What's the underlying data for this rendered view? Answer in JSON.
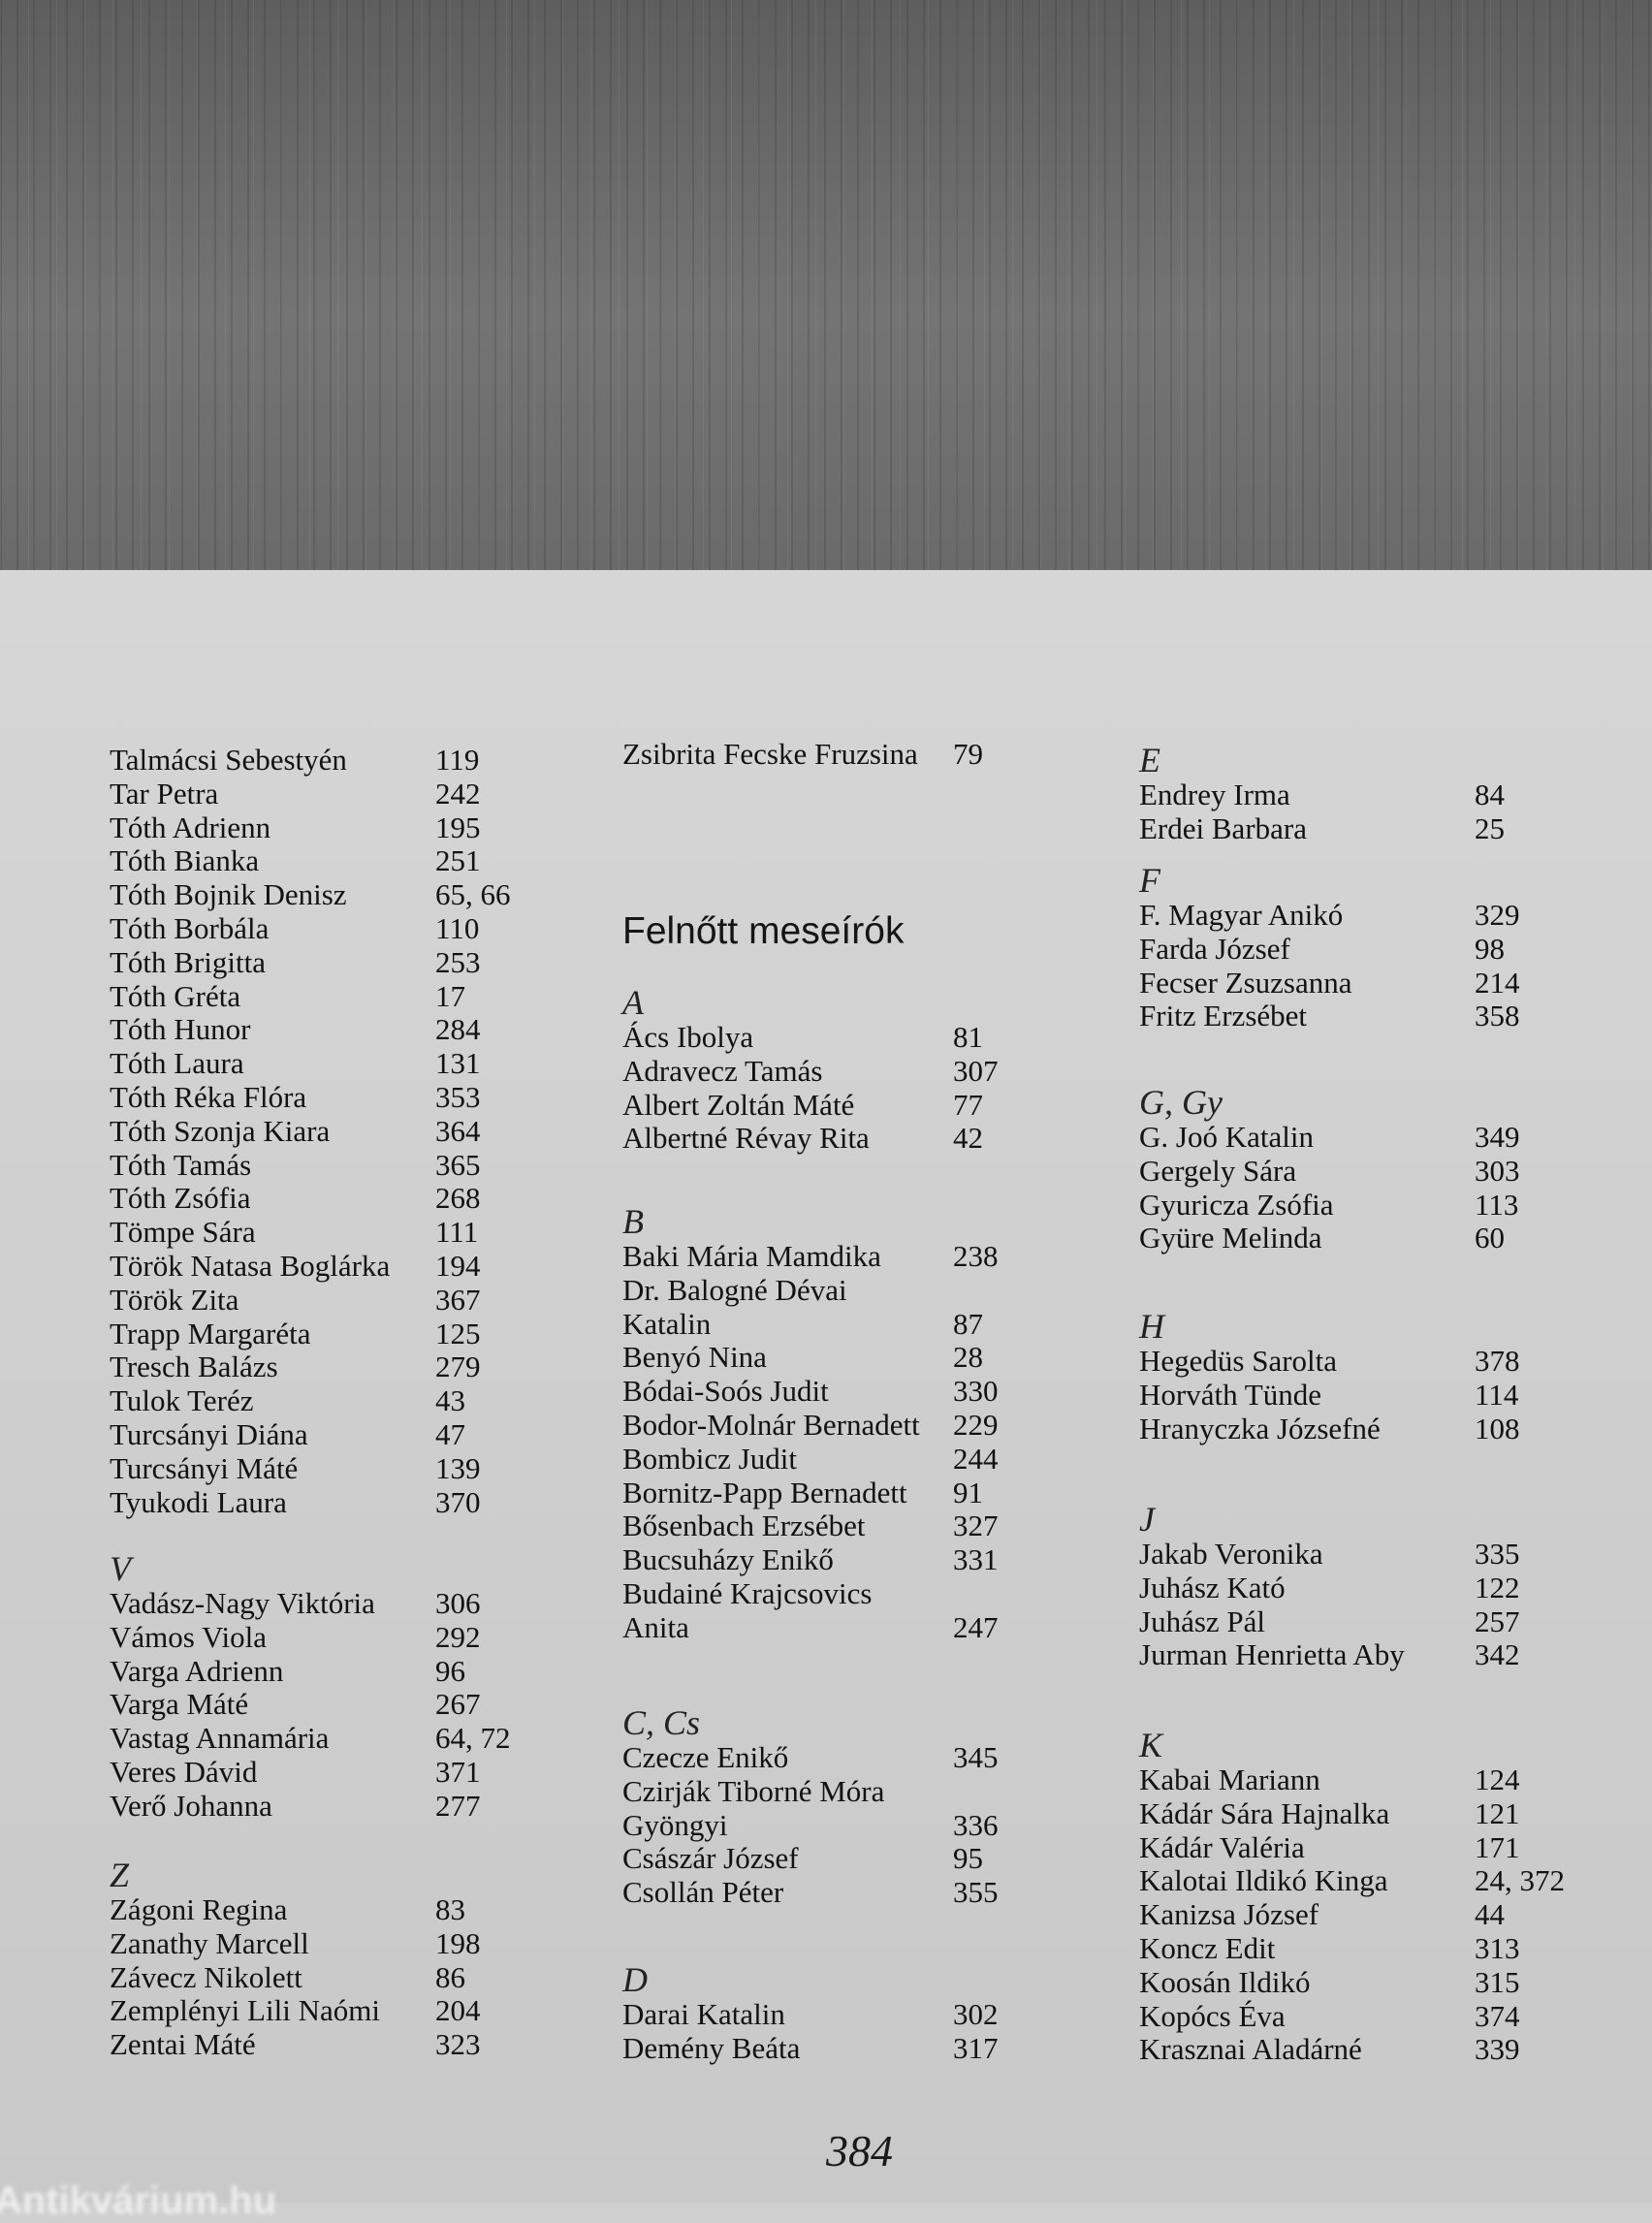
{
  "columns": [
    {
      "sections": [
        {
          "heading": "",
          "entries": [
            {
              "name": "Talmácsi Sebestyén",
              "pages": "119"
            },
            {
              "name": "Tar Petra",
              "pages": "242"
            },
            {
              "name": "Tóth Adrienn",
              "pages": "195"
            },
            {
              "name": "Tóth Bianka",
              "pages": "251"
            },
            {
              "name": "Tóth Bojnik Denisz",
              "pages": "65, 66"
            },
            {
              "name": "Tóth Borbála",
              "pages": "110"
            },
            {
              "name": "Tóth Brigitta",
              "pages": "253"
            },
            {
              "name": "Tóth Gréta",
              "pages": "17"
            },
            {
              "name": "Tóth Hunor",
              "pages": "284"
            },
            {
              "name": "Tóth Laura",
              "pages": "131"
            },
            {
              "name": "Tóth Réka Flóra",
              "pages": "353"
            },
            {
              "name": "Tóth Szonja Kiara",
              "pages": "364"
            },
            {
              "name": "Tóth Tamás",
              "pages": "365"
            },
            {
              "name": "Tóth Zsófia",
              "pages": "268"
            },
            {
              "name": "Tömpe Sára",
              "pages": "111"
            },
            {
              "name": "Török Natasa Boglárka",
              "pages": "194"
            },
            {
              "name": "Török Zita",
              "pages": "367"
            },
            {
              "name": "Trapp Margaréta",
              "pages": "125"
            },
            {
              "name": "Tresch Balázs",
              "pages": "279"
            },
            {
              "name": "Tulok Teréz",
              "pages": "43"
            },
            {
              "name": "Turcsányi Diána",
              "pages": "47"
            },
            {
              "name": "Turcsányi Máté",
              "pages": "139"
            },
            {
              "name": "Tyukodi Laura",
              "pages": "370"
            }
          ]
        },
        {
          "heading": "V",
          "entries": [
            {
              "name": "Vadász-Nagy Viktória",
              "pages": "306"
            },
            {
              "name": "Vámos Viola",
              "pages": "292"
            },
            {
              "name": "Varga Adrienn",
              "pages": "96"
            },
            {
              "name": "Varga Máté",
              "pages": "267"
            },
            {
              "name": "Vastag Annamária",
              "pages": "64, 72"
            },
            {
              "name": "Veres Dávid",
              "pages": "371"
            },
            {
              "name": "Verő Johanna",
              "pages": "277"
            }
          ]
        },
        {
          "heading": "Z",
          "entries": [
            {
              "name": "Zágoni Regina",
              "pages": "83"
            },
            {
              "name": "Zanathy Marcell",
              "pages": "198"
            },
            {
              "name": "Závecz Nikolett",
              "pages": "86"
            },
            {
              "name": "Zemplényi Lili Naómi",
              "pages": "204"
            },
            {
              "name": "Zentai Máté",
              "pages": "323"
            }
          ]
        }
      ]
    },
    {
      "sections": [
        {
          "heading": "",
          "entries": [
            {
              "name": "Zsibrita Fecske Fruzsina",
              "pages": "79"
            }
          ]
        },
        {
          "heading": "A",
          "entries": [
            {
              "name": "Ács Ibolya",
              "pages": "81"
            },
            {
              "name": "Adravecz Tamás",
              "pages": "307"
            },
            {
              "name": "Albert Zoltán Máté",
              "pages": "77"
            },
            {
              "name": "Albertné Révay Rita",
              "pages": "42"
            }
          ]
        },
        {
          "heading": "B",
          "entries": [
            {
              "name": "Baki Mária Mamdika",
              "pages": "238"
            },
            {
              "name": "Dr. Balogné Dévai",
              "pages": ""
            },
            {
              "name": "Katalin",
              "pages": "87"
            },
            {
              "name": "Benyó Nina",
              "pages": "28"
            },
            {
              "name": "Bódai-Soós Judit",
              "pages": "330"
            },
            {
              "name": "Bodor-Molnár Bernadett",
              "pages": "229"
            },
            {
              "name": "Bombicz Judit",
              "pages": "244"
            },
            {
              "name": "Bornitz-Papp Bernadett",
              "pages": "91"
            },
            {
              "name": "Bősenbach Erzsébet",
              "pages": "327"
            },
            {
              "name": "Bucsuházy Enikő",
              "pages": "331"
            },
            {
              "name": "Budainé Krajcsovics",
              "pages": ""
            },
            {
              "name": "Anita",
              "pages": "247"
            }
          ]
        },
        {
          "heading": "C, Cs",
          "entries": [
            {
              "name": "Czecze Enikő",
              "pages": "345"
            },
            {
              "name": "Czirják Tiborné Móra",
              "pages": ""
            },
            {
              "name": "Gyöngyi",
              "pages": "336"
            },
            {
              "name": "Császár József",
              "pages": "95"
            },
            {
              "name": "Csollán Péter",
              "pages": "355"
            }
          ]
        },
        {
          "heading": "D",
          "entries": [
            {
              "name": "Darai Katalin",
              "pages": "302"
            },
            {
              "name": "Demény Beáta",
              "pages": "317"
            }
          ]
        }
      ]
    },
    {
      "sections": [
        {
          "heading": "E",
          "entries": [
            {
              "name": "Endrey Irma",
              "pages": "84"
            },
            {
              "name": "Erdei Barbara",
              "pages": "25"
            }
          ]
        },
        {
          "heading": "F",
          "entries": [
            {
              "name": "F. Magyar Anikó",
              "pages": "329"
            },
            {
              "name": "Farda József",
              "pages": "98"
            },
            {
              "name": "Fecser Zsuzsanna",
              "pages": "214"
            },
            {
              "name": "Fritz Erzsébet",
              "pages": "358"
            }
          ]
        },
        {
          "heading": "G, Gy",
          "entries": [
            {
              "name": "G. Joó Katalin",
              "pages": "349"
            },
            {
              "name": "Gergely Sára",
              "pages": "303"
            },
            {
              "name": "Gyuricza Zsófia",
              "pages": "113"
            },
            {
              "name": "Gyüre Melinda",
              "pages": "60"
            }
          ]
        },
        {
          "heading": "H",
          "entries": [
            {
              "name": "Hegedüs Sarolta",
              "pages": "378"
            },
            {
              "name": "Horváth Tünde",
              "pages": "114"
            },
            {
              "name": "Hranyczka Józsefné",
              "pages": "108"
            }
          ]
        },
        {
          "heading": "J",
          "entries": [
            {
              "name": "Jakab Veronika",
              "pages": "335"
            },
            {
              "name": "Juhász Kató",
              "pages": "122"
            },
            {
              "name": "Juhász Pál",
              "pages": "257"
            },
            {
              "name": "Jurman Henrietta Aby",
              "pages": "342"
            }
          ]
        },
        {
          "heading": "K",
          "entries": [
            {
              "name": "Kabai Mariann",
              "pages": "124"
            },
            {
              "name": "Kádár Sára Hajnalka",
              "pages": "121"
            },
            {
              "name": "Kádár Valéria",
              "pages": "171"
            },
            {
              "name": "Kalotai Ildikó Kinga",
              "pages": "24, 372"
            },
            {
              "name": "Kanizsa József",
              "pages": "44"
            },
            {
              "name": "Koncz Edit",
              "pages": "313"
            },
            {
              "name": "Koosán Ildikó",
              "pages": "315"
            },
            {
              "name": "Kopócs Éva",
              "pages": "374"
            },
            {
              "name": "Krasznai Aladárné",
              "pages": "339"
            }
          ]
        }
      ]
    }
  ],
  "section_title": "Felnőtt meseírók",
  "page_number": "384",
  "watermark": "Antikvárium.hu"
}
